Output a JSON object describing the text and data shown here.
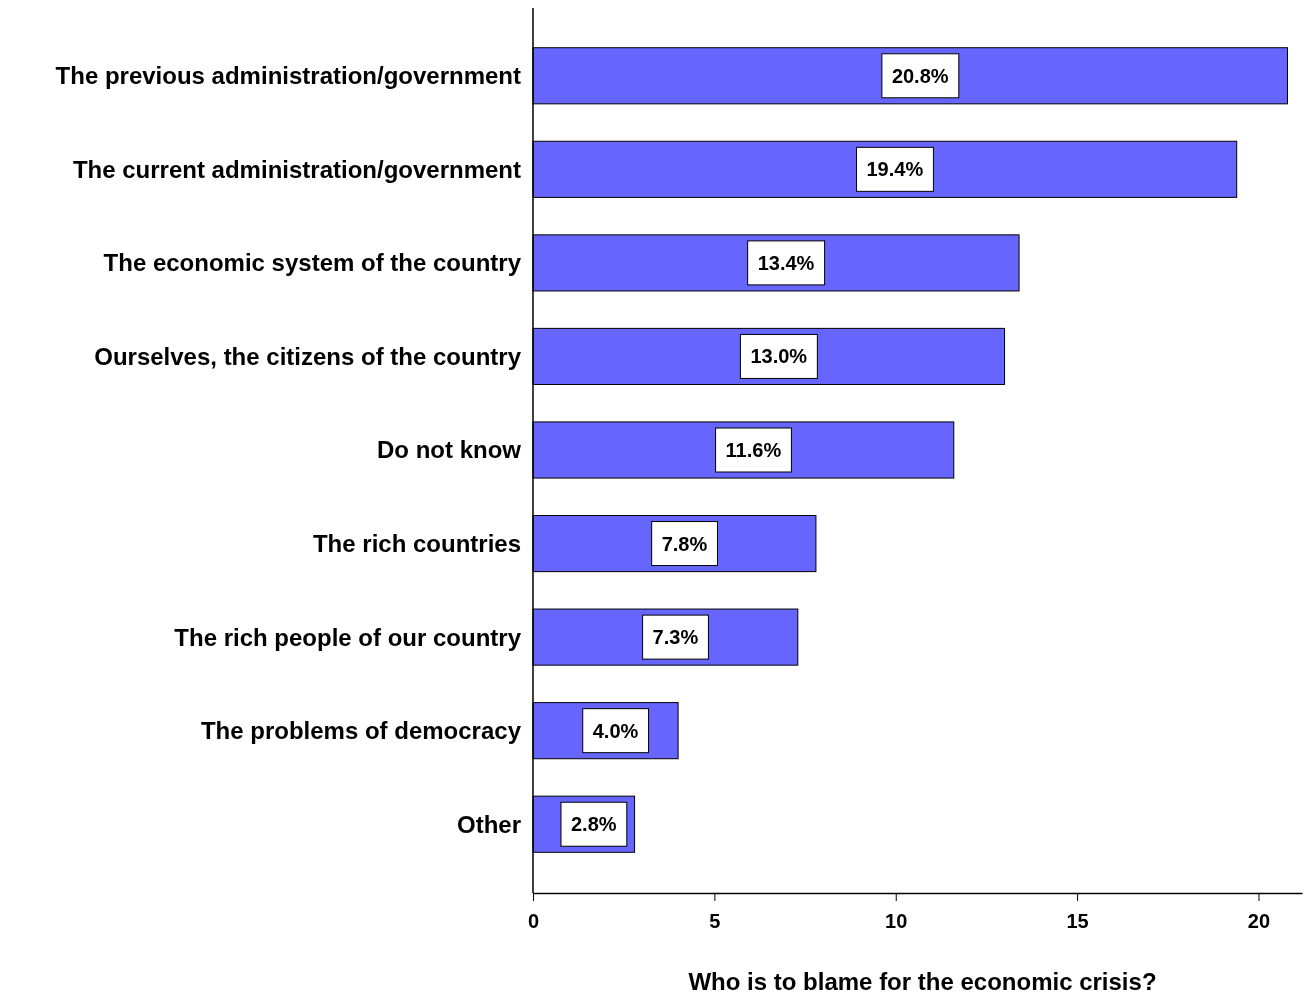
{
  "chart_data": {
    "type": "bar",
    "orientation": "horizontal",
    "xlabel": "Who is to blame for the economic crisis?",
    "categories": [
      "The previous administration/government",
      "The current administration/government",
      "The economic system of the country",
      "Ourselves, the citizens of the country",
      "Do not know",
      "The rich countries",
      "The rich people of our country",
      "The problems of democracy",
      "Other"
    ],
    "values": [
      20.8,
      19.4,
      13.4,
      13.0,
      11.6,
      7.8,
      7.3,
      4.0,
      2.8
    ],
    "value_labels": [
      "20.8%",
      "19.4%",
      "13.4%",
      "13.0%",
      "11.6%",
      "7.8%",
      "7.3%",
      "4.0%",
      "2.8%"
    ],
    "color": "#6666ff",
    "xlim": [
      0,
      21.2
    ],
    "xticks": [
      0,
      5,
      10,
      15,
      20
    ],
    "grid": false
  }
}
